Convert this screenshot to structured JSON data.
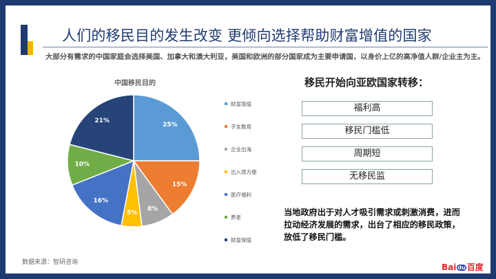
{
  "slide": {
    "title": "人们的移民目的发生改变 更倾向选择帮助财富增值的国家",
    "subtitle": "大部分有需求的中国家庭会选择美国、加拿大和澳大利亚，美国和欧洲的部分国家成为主要申请国，以身价上亿的高净值人群/企业主为主。",
    "source": "数据来源：智研咨询"
  },
  "chart_data": {
    "type": "pie",
    "title": "中国移民目的",
    "categories": [
      "财富增值",
      "子女教育",
      "企业出海",
      "出入境方便",
      "医疗福利",
      "养老",
      "财富保值"
    ],
    "values": [
      25,
      15,
      8,
      5,
      16,
      10,
      21
    ],
    "labels": [
      "25%",
      "15%",
      "8%",
      "5%",
      "16%",
      "10%",
      "21%"
    ],
    "colors": [
      "#5b9bd5",
      "#ed7d31",
      "#a5a5a5",
      "#ffc000",
      "#4472c4",
      "#70ad47",
      "#264478"
    ],
    "legend_position": "right"
  },
  "right": {
    "title": "移民开始向亚欧国家转移：",
    "reasons": [
      "福利高",
      "移民门槛低",
      "周期短",
      "无移民监"
    ],
    "note": "当地政府出于对人才吸引需求或刺激消费，进而拉动经济发展的需求，出台了相应的移民政策，放低了移民门槛。"
  },
  "logo": {
    "part1": "Bai",
    "part2": "du",
    "part3": "百度"
  }
}
